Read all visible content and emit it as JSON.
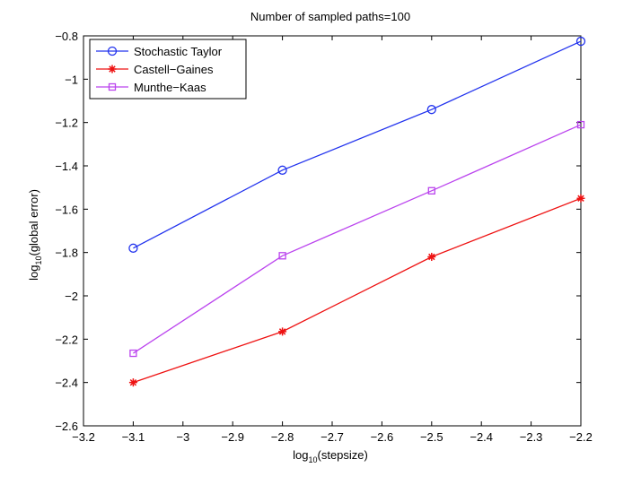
{
  "chart_data": {
    "type": "line",
    "title": "Number of sampled paths=100",
    "xlabel": {
      "prefix": "log",
      "sub": "10",
      "suffix": "(stepsize)"
    },
    "ylabel": {
      "prefix": "log",
      "sub": "10",
      "suffix": "(global error)"
    },
    "xlim": [
      -3.2,
      -2.2
    ],
    "ylim": [
      -2.6,
      -0.8
    ],
    "xticks": [
      -3.2,
      -3.1,
      -3.0,
      -2.9,
      -2.8,
      -2.7,
      -2.6,
      -2.5,
      -2.4,
      -2.3,
      -2.2
    ],
    "xtick_labels": [
      "−3.2",
      "−3.1",
      "−3",
      "−2.9",
      "−2.8",
      "−2.7",
      "−2.6",
      "−2.5",
      "−2.4",
      "−2.3",
      "−2.2"
    ],
    "yticks": [
      -2.6,
      -2.4,
      -2.2,
      -2.0,
      -1.8,
      -1.6,
      -1.4,
      -1.2,
      -1.0,
      -0.8
    ],
    "ytick_labels": [
      "−2.6",
      "−2.4",
      "−2.2",
      "−2",
      "−1.8",
      "−1.6",
      "−1.4",
      "−1.2",
      "−1",
      "−0.8"
    ],
    "grid": false,
    "legend_position": "top-left",
    "series": [
      {
        "name": "Stochastic Taylor",
        "color": "#2233ee",
        "marker": "circle",
        "x": [
          -3.1,
          -2.8,
          -2.5,
          -2.2
        ],
        "y": [
          -1.78,
          -1.42,
          -1.14,
          -0.825
        ]
      },
      {
        "name": "Castell−Gaines",
        "color": "#ee1111",
        "marker": "star",
        "x": [
          -3.1,
          -2.8,
          -2.5,
          -2.2
        ],
        "y": [
          -2.4,
          -2.165,
          -1.82,
          -1.55
        ]
      },
      {
        "name": "Munthe−Kaas",
        "color": "#bb44ee",
        "marker": "square",
        "x": [
          -3.1,
          -2.8,
          -2.5,
          -2.2
        ],
        "y": [
          -2.265,
          -1.815,
          -1.515,
          -1.21
        ]
      }
    ]
  }
}
